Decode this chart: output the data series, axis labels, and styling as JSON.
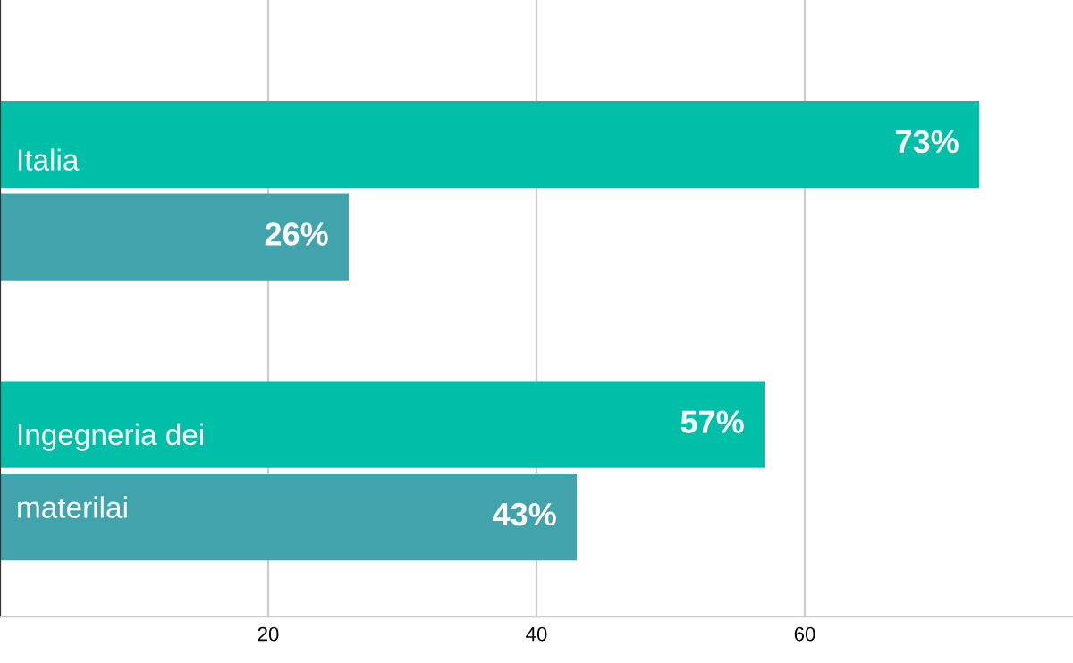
{
  "chart_data": {
    "type": "bar",
    "orientation": "horizontal",
    "categories": [
      "Italia",
      "Ingegneria dei materilai"
    ],
    "series": [
      {
        "color": "#00bfa8",
        "values": [
          73,
          57
        ],
        "value_labels": [
          "73%",
          "57%"
        ]
      },
      {
        "color": "#41a4ac",
        "values": [
          26,
          43
        ],
        "value_labels": [
          "26%",
          "43%"
        ]
      }
    ],
    "xlim": [
      0,
      80
    ],
    "xticks": [
      20,
      40,
      60
    ],
    "grid": "x",
    "legend": false
  }
}
